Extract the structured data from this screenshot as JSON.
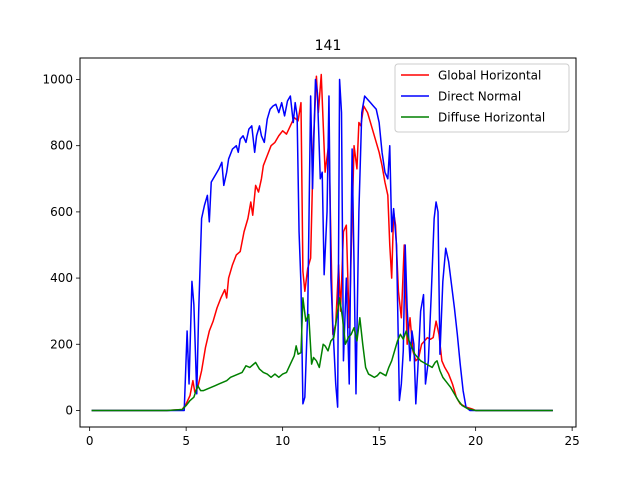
{
  "chart_data": {
    "type": "line",
    "title": "141",
    "xlabel": "",
    "ylabel": "",
    "xlim": [
      -0.5,
      25.2
    ],
    "ylim": [
      -50,
      1065
    ],
    "xticks": [
      0,
      5,
      10,
      15,
      20,
      25
    ],
    "yticks": [
      0,
      200,
      400,
      600,
      800,
      1000
    ],
    "grid": false,
    "legend_position": "top-right",
    "series": [
      {
        "name": "Global Horizontal",
        "color": "#ff0000",
        "points": [
          [
            0.1,
            0
          ],
          [
            1,
            0
          ],
          [
            2,
            0
          ],
          [
            3,
            0
          ],
          [
            4,
            0
          ],
          [
            4.8,
            3
          ],
          [
            5.0,
            20
          ],
          [
            5.2,
            45
          ],
          [
            5.35,
            90
          ],
          [
            5.45,
            55
          ],
          [
            5.6,
            70
          ],
          [
            5.8,
            120
          ],
          [
            6.0,
            190
          ],
          [
            6.2,
            240
          ],
          [
            6.4,
            270
          ],
          [
            6.6,
            310
          ],
          [
            6.8,
            340
          ],
          [
            7.0,
            365
          ],
          [
            7.1,
            340
          ],
          [
            7.2,
            400
          ],
          [
            7.4,
            440
          ],
          [
            7.6,
            470
          ],
          [
            7.8,
            480
          ],
          [
            8.0,
            540
          ],
          [
            8.2,
            580
          ],
          [
            8.35,
            630
          ],
          [
            8.45,
            590
          ],
          [
            8.6,
            680
          ],
          [
            8.75,
            660
          ],
          [
            8.9,
            700
          ],
          [
            9.0,
            740
          ],
          [
            9.2,
            770
          ],
          [
            9.4,
            800
          ],
          [
            9.6,
            810
          ],
          [
            9.8,
            830
          ],
          [
            10.0,
            845
          ],
          [
            10.2,
            835
          ],
          [
            10.4,
            860
          ],
          [
            10.6,
            885
          ],
          [
            10.8,
            875
          ],
          [
            10.95,
            930
          ],
          [
            11.05,
            420
          ],
          [
            11.15,
            360
          ],
          [
            11.3,
            430
          ],
          [
            11.45,
            460
          ],
          [
            11.6,
            820
          ],
          [
            11.75,
            1010
          ],
          [
            11.85,
            900
          ],
          [
            12.0,
            1015
          ],
          [
            12.2,
            720
          ],
          [
            12.4,
            810
          ],
          [
            12.5,
            520
          ],
          [
            12.6,
            230
          ],
          [
            12.75,
            260
          ],
          [
            12.9,
            440
          ],
          [
            13.0,
            300
          ],
          [
            13.15,
            540
          ],
          [
            13.3,
            560
          ],
          [
            13.45,
            250
          ],
          [
            13.6,
            580
          ],
          [
            13.7,
            800
          ],
          [
            13.85,
            730
          ],
          [
            13.95,
            870
          ],
          [
            14.05,
            860
          ],
          [
            14.2,
            920
          ],
          [
            14.4,
            900
          ],
          [
            14.6,
            860
          ],
          [
            14.8,
            820
          ],
          [
            15.0,
            780
          ],
          [
            15.15,
            740
          ],
          [
            15.3,
            690
          ],
          [
            15.45,
            650
          ],
          [
            15.55,
            500
          ],
          [
            15.65,
            400
          ],
          [
            15.75,
            600
          ],
          [
            15.85,
            560
          ],
          [
            16.0,
            360
          ],
          [
            16.15,
            280
          ],
          [
            16.3,
            500
          ],
          [
            16.45,
            200
          ],
          [
            16.6,
            280
          ],
          [
            16.75,
            180
          ],
          [
            16.9,
            150
          ],
          [
            17.05,
            160
          ],
          [
            17.2,
            200
          ],
          [
            17.35,
            210
          ],
          [
            17.5,
            220
          ],
          [
            17.65,
            215
          ],
          [
            17.8,
            220
          ],
          [
            17.95,
            270
          ],
          [
            18.1,
            230
          ],
          [
            18.25,
            150
          ],
          [
            18.4,
            130
          ],
          [
            18.6,
            110
          ],
          [
            18.8,
            80
          ],
          [
            19.0,
            40
          ],
          [
            19.2,
            20
          ],
          [
            19.5,
            10
          ],
          [
            19.8,
            5
          ],
          [
            20.0,
            0
          ],
          [
            20.5,
            0
          ],
          [
            21,
            0
          ],
          [
            22,
            0
          ],
          [
            23,
            0
          ],
          [
            24,
            0
          ]
        ]
      },
      {
        "name": "Direct Normal",
        "color": "#0000ff",
        "points": [
          [
            0.1,
            0
          ],
          [
            1,
            0
          ],
          [
            2,
            0
          ],
          [
            3,
            0
          ],
          [
            4,
            0
          ],
          [
            4.9,
            0
          ],
          [
            5.05,
            240
          ],
          [
            5.15,
            80
          ],
          [
            5.3,
            390
          ],
          [
            5.4,
            320
          ],
          [
            5.55,
            50
          ],
          [
            5.65,
            300
          ],
          [
            5.8,
            580
          ],
          [
            5.95,
            620
          ],
          [
            6.1,
            650
          ],
          [
            6.2,
            570
          ],
          [
            6.3,
            690
          ],
          [
            6.5,
            710
          ],
          [
            6.7,
            730
          ],
          [
            6.85,
            750
          ],
          [
            6.95,
            680
          ],
          [
            7.1,
            720
          ],
          [
            7.2,
            760
          ],
          [
            7.4,
            790
          ],
          [
            7.6,
            800
          ],
          [
            7.7,
            780
          ],
          [
            7.8,
            820
          ],
          [
            7.95,
            830
          ],
          [
            8.1,
            810
          ],
          [
            8.25,
            850
          ],
          [
            8.4,
            860
          ],
          [
            8.55,
            780
          ],
          [
            8.65,
            830
          ],
          [
            8.8,
            860
          ],
          [
            8.9,
            830
          ],
          [
            9.05,
            810
          ],
          [
            9.2,
            880
          ],
          [
            9.35,
            910
          ],
          [
            9.5,
            920
          ],
          [
            9.65,
            925
          ],
          [
            9.8,
            900
          ],
          [
            9.95,
            930
          ],
          [
            10.1,
            890
          ],
          [
            10.25,
            935
          ],
          [
            10.4,
            950
          ],
          [
            10.55,
            870
          ],
          [
            10.65,
            930
          ],
          [
            10.75,
            890
          ],
          [
            10.85,
            540
          ],
          [
            10.95,
            380
          ],
          [
            11.05,
            20
          ],
          [
            11.15,
            40
          ],
          [
            11.3,
            300
          ],
          [
            11.45,
            950
          ],
          [
            11.55,
            670
          ],
          [
            11.7,
            1000
          ],
          [
            11.8,
            960
          ],
          [
            11.95,
            700
          ],
          [
            12.05,
            720
          ],
          [
            12.15,
            410
          ],
          [
            12.3,
            600
          ],
          [
            12.4,
            950
          ],
          [
            12.5,
            400
          ],
          [
            12.6,
            260
          ],
          [
            12.75,
            80
          ],
          [
            12.85,
            10
          ],
          [
            12.95,
            1000
          ],
          [
            13.05,
            900
          ],
          [
            13.15,
            150
          ],
          [
            13.3,
            400
          ],
          [
            13.45,
            80
          ],
          [
            13.6,
            790
          ],
          [
            13.7,
            440
          ],
          [
            13.8,
            50
          ],
          [
            13.95,
            600
          ],
          [
            14.1,
            900
          ],
          [
            14.25,
            950
          ],
          [
            14.4,
            940
          ],
          [
            14.55,
            930
          ],
          [
            14.7,
            920
          ],
          [
            14.85,
            910
          ],
          [
            15.0,
            870
          ],
          [
            15.15,
            780
          ],
          [
            15.3,
            720
          ],
          [
            15.45,
            700
          ],
          [
            15.55,
            800
          ],
          [
            15.65,
            540
          ],
          [
            15.75,
            610
          ],
          [
            15.9,
            500
          ],
          [
            16.05,
            30
          ],
          [
            16.15,
            80
          ],
          [
            16.25,
            180
          ],
          [
            16.35,
            500
          ],
          [
            16.45,
            310
          ],
          [
            16.6,
            150
          ],
          [
            16.7,
            240
          ],
          [
            16.8,
            200
          ],
          [
            16.9,
            20
          ],
          [
            17.0,
            120
          ],
          [
            17.15,
            300
          ],
          [
            17.3,
            350
          ],
          [
            17.4,
            80
          ],
          [
            17.55,
            150
          ],
          [
            17.7,
            350
          ],
          [
            17.85,
            580
          ],
          [
            17.95,
            630
          ],
          [
            18.05,
            600
          ],
          [
            18.15,
            170
          ],
          [
            18.3,
            390
          ],
          [
            18.45,
            490
          ],
          [
            18.6,
            450
          ],
          [
            18.75,
            380
          ],
          [
            18.9,
            310
          ],
          [
            19.05,
            230
          ],
          [
            19.2,
            140
          ],
          [
            19.35,
            60
          ],
          [
            19.5,
            10
          ],
          [
            19.7,
            0
          ],
          [
            20,
            0
          ],
          [
            21,
            0
          ],
          [
            22,
            0
          ],
          [
            23,
            0
          ],
          [
            24,
            0
          ]
        ]
      },
      {
        "name": "Diffuse Horizontal",
        "color": "#008000",
        "points": [
          [
            0.1,
            0
          ],
          [
            1,
            0
          ],
          [
            2,
            0
          ],
          [
            3,
            0
          ],
          [
            4,
            0
          ],
          [
            4.8,
            3
          ],
          [
            5.0,
            15
          ],
          [
            5.2,
            30
          ],
          [
            5.4,
            40
          ],
          [
            5.6,
            75
          ],
          [
            5.75,
            60
          ],
          [
            5.9,
            60
          ],
          [
            6.1,
            65
          ],
          [
            6.3,
            70
          ],
          [
            6.5,
            75
          ],
          [
            6.7,
            80
          ],
          [
            6.9,
            85
          ],
          [
            7.1,
            90
          ],
          [
            7.3,
            100
          ],
          [
            7.5,
            105
          ],
          [
            7.7,
            110
          ],
          [
            7.9,
            115
          ],
          [
            8.1,
            135
          ],
          [
            8.3,
            130
          ],
          [
            8.5,
            140
          ],
          [
            8.6,
            145
          ],
          [
            8.8,
            125
          ],
          [
            9.0,
            115
          ],
          [
            9.2,
            110
          ],
          [
            9.4,
            100
          ],
          [
            9.6,
            110
          ],
          [
            9.8,
            100
          ],
          [
            10.0,
            110
          ],
          [
            10.2,
            115
          ],
          [
            10.4,
            140
          ],
          [
            10.6,
            165
          ],
          [
            10.7,
            195
          ],
          [
            10.8,
            170
          ],
          [
            10.95,
            175
          ],
          [
            11.05,
            340
          ],
          [
            11.2,
            270
          ],
          [
            11.35,
            290
          ],
          [
            11.5,
            140
          ],
          [
            11.6,
            160
          ],
          [
            11.75,
            150
          ],
          [
            11.9,
            130
          ],
          [
            12.1,
            200
          ],
          [
            12.2,
            195
          ],
          [
            12.35,
            180
          ],
          [
            12.5,
            210
          ],
          [
            12.65,
            220
          ],
          [
            12.8,
            280
          ],
          [
            12.95,
            340
          ],
          [
            13.1,
            280
          ],
          [
            13.25,
            200
          ],
          [
            13.4,
            220
          ],
          [
            13.55,
            230
          ],
          [
            13.7,
            250
          ],
          [
            13.85,
            210
          ],
          [
            14.0,
            280
          ],
          [
            14.15,
            200
          ],
          [
            14.3,
            130
          ],
          [
            14.45,
            110
          ],
          [
            14.6,
            105
          ],
          [
            14.75,
            100
          ],
          [
            14.9,
            105
          ],
          [
            15.05,
            115
          ],
          [
            15.2,
            110
          ],
          [
            15.35,
            105
          ],
          [
            15.5,
            130
          ],
          [
            15.65,
            150
          ],
          [
            15.8,
            180
          ],
          [
            15.95,
            210
          ],
          [
            16.1,
            230
          ],
          [
            16.25,
            215
          ],
          [
            16.4,
            240
          ],
          [
            16.55,
            210
          ],
          [
            16.7,
            190
          ],
          [
            16.85,
            170
          ],
          [
            17.0,
            160
          ],
          [
            17.15,
            150
          ],
          [
            17.3,
            145
          ],
          [
            17.45,
            140
          ],
          [
            17.6,
            135
          ],
          [
            17.75,
            130
          ],
          [
            17.9,
            145
          ],
          [
            18.0,
            150
          ],
          [
            18.15,
            120
          ],
          [
            18.3,
            100
          ],
          [
            18.5,
            85
          ],
          [
            18.7,
            70
          ],
          [
            18.9,
            50
          ],
          [
            19.1,
            30
          ],
          [
            19.3,
            15
          ],
          [
            19.6,
            5
          ],
          [
            20.0,
            0
          ],
          [
            21,
            0
          ],
          [
            22,
            0
          ],
          [
            23,
            0
          ],
          [
            24,
            0
          ]
        ]
      }
    ]
  }
}
